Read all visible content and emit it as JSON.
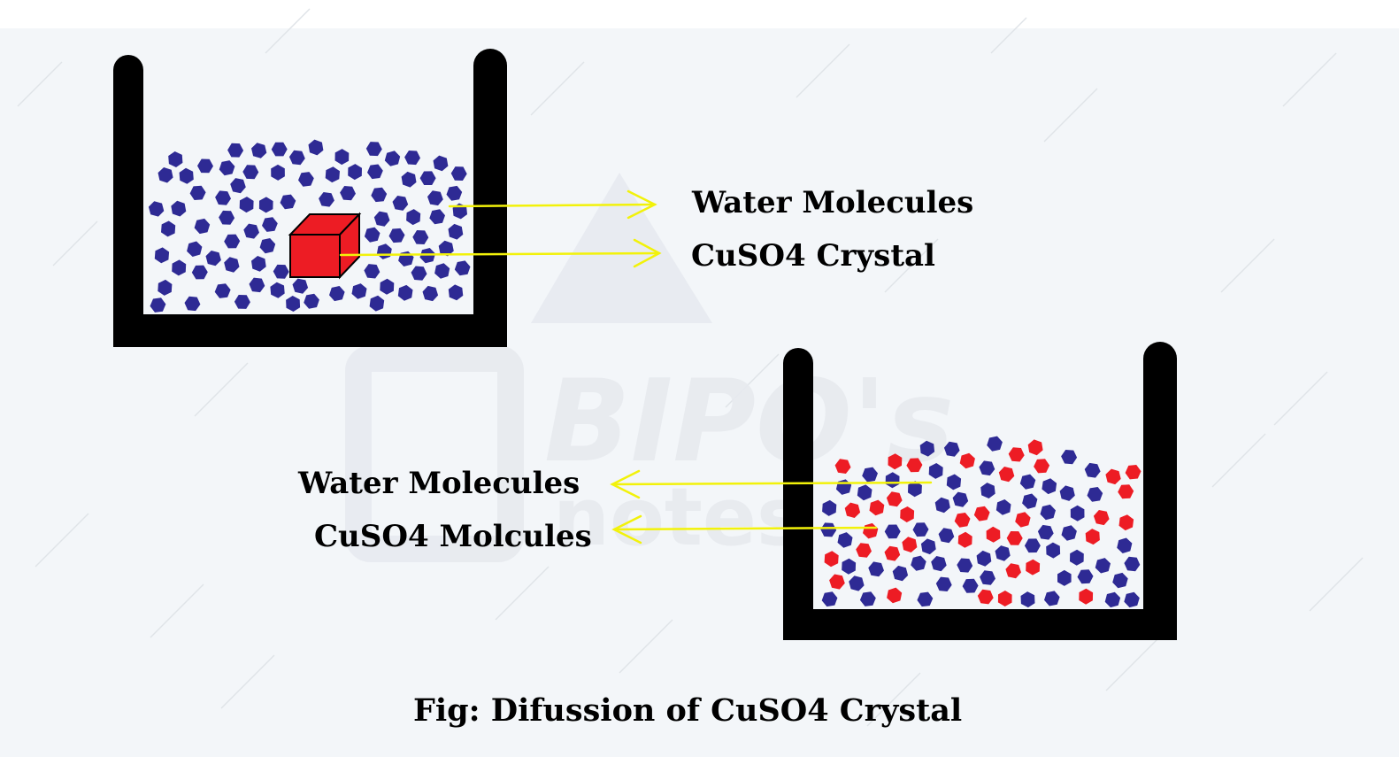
{
  "colors": {
    "page_top": "#ffffff",
    "background": "#f3f6f9",
    "diagonal_lines": "#dfe3e8",
    "beaker": "#000000",
    "water_molecule": "#2e2a94",
    "cuso4": "#ed1c24",
    "arrow": "#f2f20a",
    "watermark": "#e6e9ee"
  },
  "watermark": {
    "text": "BIPO's notes"
  },
  "beaker_1": {
    "labels": {
      "water": "Water Molecules",
      "crystal": "CuSO4 Crystal"
    }
  },
  "beaker_2": {
    "labels": {
      "water": "Water Molecules",
      "cuso4": "CuSO4 Molcules"
    }
  },
  "caption": "Fig: Difussion of CuSO4 Crystal"
}
